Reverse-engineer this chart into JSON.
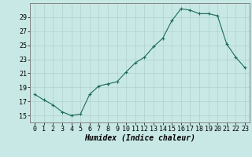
{
  "x": [
    0,
    1,
    2,
    3,
    4,
    5,
    6,
    7,
    8,
    9,
    10,
    11,
    12,
    13,
    14,
    15,
    16,
    17,
    18,
    19,
    20,
    21,
    22,
    23
  ],
  "y": [
    18.0,
    17.2,
    16.5,
    15.5,
    15.0,
    15.2,
    18.0,
    19.2,
    19.5,
    19.8,
    21.2,
    22.5,
    23.3,
    24.8,
    26.0,
    28.5,
    30.2,
    30.0,
    29.5,
    29.5,
    29.2,
    25.2,
    23.3,
    21.8
  ],
  "line_color": "#1a6b5a",
  "marker": "+",
  "marker_size": 3,
  "marker_linewidth": 0.8,
  "bg_color": "#c8e8e5",
  "grid_color": "#b0d0cc",
  "xlabel": "Humidex (Indice chaleur)",
  "yticks": [
    15,
    17,
    19,
    21,
    23,
    25,
    27,
    29
  ],
  "xticks": [
    0,
    1,
    2,
    3,
    4,
    5,
    6,
    7,
    8,
    9,
    10,
    11,
    12,
    13,
    14,
    15,
    16,
    17,
    18,
    19,
    20,
    21,
    22,
    23
  ],
  "xlim": [
    -0.5,
    23.5
  ],
  "ylim": [
    14.0,
    31.0
  ],
  "xlabel_fontsize": 7,
  "tick_fontsize": 6,
  "line_width": 0.8
}
